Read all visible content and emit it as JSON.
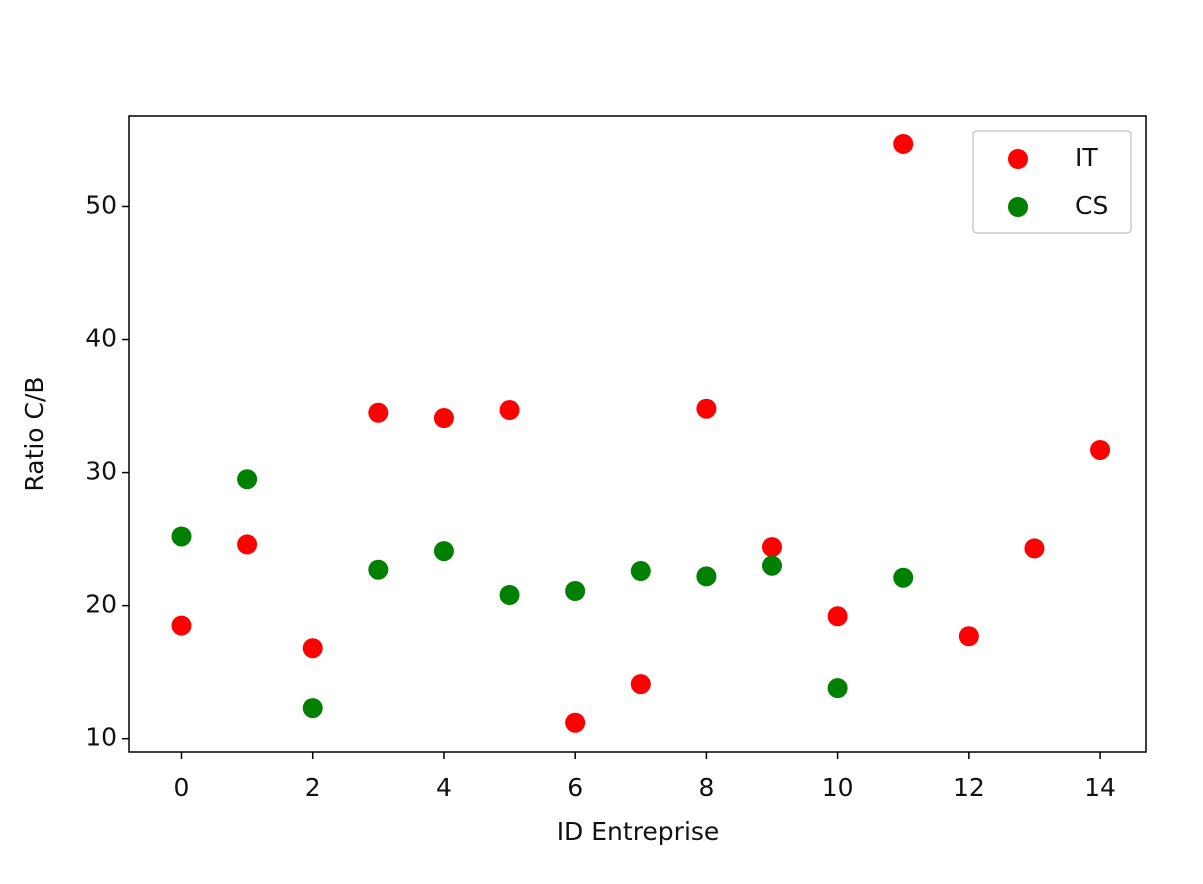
{
  "chart_data": {
    "type": "scatter",
    "xlabel": "ID Entreprise",
    "ylabel": "Ratio C/B",
    "xlim": [
      -0.8,
      14.7
    ],
    "ylim": [
      9.0,
      56.8
    ],
    "xticks": [
      0,
      2,
      4,
      6,
      8,
      10,
      12,
      14
    ],
    "yticks": [
      10,
      20,
      30,
      40,
      50
    ],
    "legend": "upper right",
    "series": [
      {
        "name": "IT",
        "color": "#ff0000",
        "x": [
          0,
          1,
          2,
          3,
          4,
          5,
          6,
          7,
          8,
          9,
          10,
          11,
          12,
          13,
          14
        ],
        "values": [
          18.5,
          24.6,
          16.8,
          34.5,
          34.1,
          34.7,
          11.2,
          14.1,
          34.8,
          24.4,
          19.2,
          54.7,
          17.7,
          24.3,
          31.7
        ]
      },
      {
        "name": "CS",
        "color": "#008000",
        "x": [
          0,
          1,
          2,
          3,
          4,
          5,
          6,
          7,
          8,
          9,
          10,
          11
        ],
        "values": [
          25.2,
          29.5,
          12.3,
          22.7,
          24.1,
          20.8,
          21.1,
          22.6,
          22.2,
          23.0,
          13.8,
          22.1
        ]
      }
    ]
  }
}
